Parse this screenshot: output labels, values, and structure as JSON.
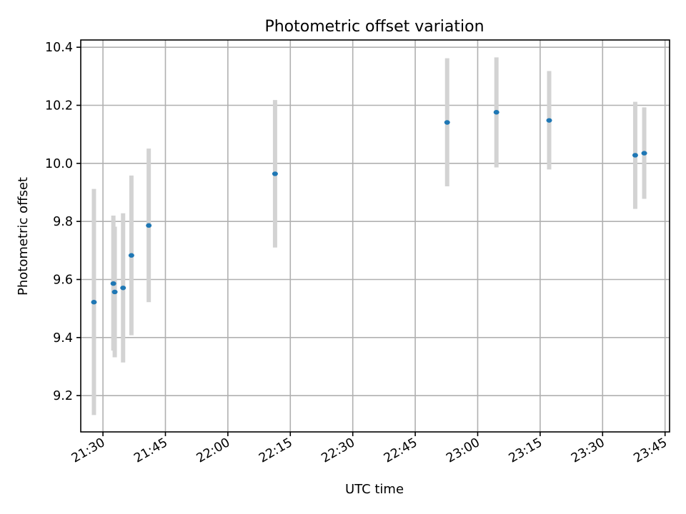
{
  "chart_data": {
    "type": "scatter",
    "title": "Photometric offset variation",
    "xlabel": "UTC time",
    "ylabel": "Photometric offset",
    "x_tick_labels": [
      "21:30",
      "21:45",
      "22:00",
      "22:15",
      "22:30",
      "22:45",
      "23:00",
      "23:15",
      "23:30",
      "23:45"
    ],
    "y_tick_labels": [
      "9.2",
      "9.4",
      "9.6",
      "9.8",
      "10.0",
      "10.2",
      "10.4"
    ],
    "x_ticks": [
      "21:30",
      "21:45",
      "22:00",
      "22:15",
      "22:30",
      "22:45",
      "23:00",
      "23:15",
      "23:30",
      "23:45"
    ],
    "y_ticks": [
      9.2,
      9.4,
      9.6,
      9.8,
      10.0,
      10.2,
      10.4
    ],
    "xlim": [
      "21:24:40",
      "23:46:05"
    ],
    "ylim": [
      9.075,
      10.425
    ],
    "grid": true,
    "marker_color": "#1f77b4",
    "error_bar_color": "#d3d3d3",
    "points": [
      {
        "x": "21:27:50",
        "y": 9.522,
        "y_low": 9.133,
        "y_high": 9.912
      },
      {
        "x": "21:32:30",
        "y": 9.586,
        "y_low": 9.355,
        "y_high": 9.82
      },
      {
        "x": "21:32:50",
        "y": 9.557,
        "y_low": 9.332,
        "y_high": 9.782
      },
      {
        "x": "21:34:50",
        "y": 9.571,
        "y_low": 9.314,
        "y_high": 9.828
      },
      {
        "x": "21:36:50",
        "y": 9.683,
        "y_low": 9.408,
        "y_high": 9.958
      },
      {
        "x": "21:41:00",
        "y": 9.786,
        "y_low": 9.522,
        "y_high": 10.051
      },
      {
        "x": "22:11:20",
        "y": 9.964,
        "y_low": 9.71,
        "y_high": 10.218
      },
      {
        "x": "22:52:40",
        "y": 10.141,
        "y_low": 9.921,
        "y_high": 10.362
      },
      {
        "x": "23:04:30",
        "y": 10.176,
        "y_low": 9.986,
        "y_high": 10.365
      },
      {
        "x": "23:17:10",
        "y": 10.148,
        "y_low": 9.979,
        "y_high": 10.318
      },
      {
        "x": "23:37:50",
        "y": 10.028,
        "y_low": 9.843,
        "y_high": 10.212
      },
      {
        "x": "23:40:00",
        "y": 10.035,
        "y_low": 9.878,
        "y_high": 10.193
      }
    ]
  }
}
